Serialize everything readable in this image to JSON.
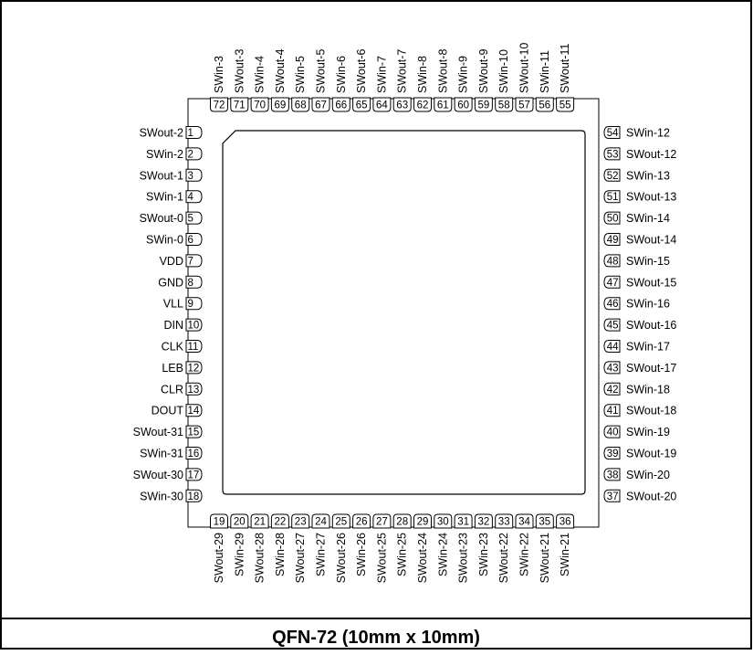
{
  "caption": "QFN-72 (10mm x 10mm)",
  "colors": {
    "line": "#000000",
    "background": "#ffffff"
  },
  "left_pins": [
    {
      "num": "1",
      "label": "SWout-2"
    },
    {
      "num": "2",
      "label": "SWin-2"
    },
    {
      "num": "3",
      "label": "SWout-1"
    },
    {
      "num": "4",
      "label": "SWin-1"
    },
    {
      "num": "5",
      "label": "SWout-0"
    },
    {
      "num": "6",
      "label": "SWin-0"
    },
    {
      "num": "7",
      "label": "VDD"
    },
    {
      "num": "8",
      "label": "GND"
    },
    {
      "num": "9",
      "label": "VLL"
    },
    {
      "num": "10",
      "label": "DIN"
    },
    {
      "num": "11",
      "label": "CLK"
    },
    {
      "num": "12",
      "label": "LEB"
    },
    {
      "num": "13",
      "label": "CLR"
    },
    {
      "num": "14",
      "label": "DOUT"
    },
    {
      "num": "15",
      "label": "SWout-31"
    },
    {
      "num": "16",
      "label": "SWin-31"
    },
    {
      "num": "17",
      "label": "SWout-30"
    },
    {
      "num": "18",
      "label": "SWin-30"
    }
  ],
  "bottom_pins": [
    {
      "num": "19",
      "label": "SWout-29"
    },
    {
      "num": "20",
      "label": "SWin-29"
    },
    {
      "num": "21",
      "label": "SWout-28"
    },
    {
      "num": "22",
      "label": "SWin-28"
    },
    {
      "num": "23",
      "label": "SWout-27"
    },
    {
      "num": "24",
      "label": "SWin-27"
    },
    {
      "num": "25",
      "label": "SWout-26"
    },
    {
      "num": "26",
      "label": "SWin-26"
    },
    {
      "num": "27",
      "label": "SWout-25"
    },
    {
      "num": "28",
      "label": "SWin-25"
    },
    {
      "num": "29",
      "label": "SWout-24"
    },
    {
      "num": "30",
      "label": "SWin-24"
    },
    {
      "num": "31",
      "label": "SWout-23"
    },
    {
      "num": "32",
      "label": "SWin-23"
    },
    {
      "num": "33",
      "label": "SWout-22"
    },
    {
      "num": "34",
      "label": "SWin-22"
    },
    {
      "num": "35",
      "label": "SWout-21"
    },
    {
      "num": "36",
      "label": "SWin-21"
    }
  ],
  "right_pins": [
    {
      "num": "54",
      "label": "SWin-12"
    },
    {
      "num": "53",
      "label": "SWout-12"
    },
    {
      "num": "52",
      "label": "SWin-13"
    },
    {
      "num": "51",
      "label": "SWout-13"
    },
    {
      "num": "50",
      "label": "SWin-14"
    },
    {
      "num": "49",
      "label": "SWout-14"
    },
    {
      "num": "48",
      "label": "SWin-15"
    },
    {
      "num": "47",
      "label": "SWout-15"
    },
    {
      "num": "46",
      "label": "SWin-16"
    },
    {
      "num": "45",
      "label": "SWout-16"
    },
    {
      "num": "44",
      "label": "SWin-17"
    },
    {
      "num": "43",
      "label": "SWout-17"
    },
    {
      "num": "42",
      "label": "SWin-18"
    },
    {
      "num": "41",
      "label": "SWout-18"
    },
    {
      "num": "40",
      "label": "SWin-19"
    },
    {
      "num": "39",
      "label": "SWout-19"
    },
    {
      "num": "38",
      "label": "SWin-20"
    },
    {
      "num": "37",
      "label": "SWout-20"
    }
  ],
  "top_pins": [
    {
      "num": "72",
      "label": "SWin-3"
    },
    {
      "num": "71",
      "label": "SWout-3"
    },
    {
      "num": "70",
      "label": "SWin-4"
    },
    {
      "num": "69",
      "label": "SWout-4"
    },
    {
      "num": "68",
      "label": "SWin-5"
    },
    {
      "num": "67",
      "label": "SWout-5"
    },
    {
      "num": "66",
      "label": "SWin-6"
    },
    {
      "num": "65",
      "label": "SWout-6"
    },
    {
      "num": "64",
      "label": "SWin-7"
    },
    {
      "num": "63",
      "label": "SWout-7"
    },
    {
      "num": "62",
      "label": "SWin-8"
    },
    {
      "num": "61",
      "label": "SWout-8"
    },
    {
      "num": "60",
      "label": "SWin-9"
    },
    {
      "num": "59",
      "label": "SWout-9"
    },
    {
      "num": "58",
      "label": "SWin-10"
    },
    {
      "num": "57",
      "label": "SWout-10"
    },
    {
      "num": "56",
      "label": "SWin-11"
    },
    {
      "num": "55",
      "label": "SWout-11"
    }
  ]
}
